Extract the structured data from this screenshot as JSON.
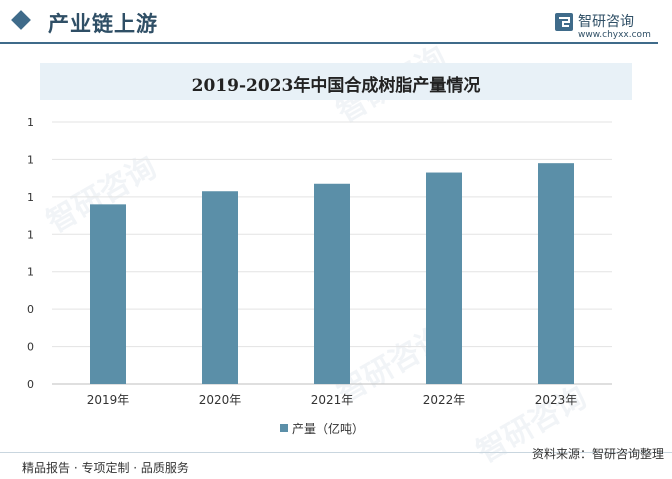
{
  "header": {
    "section_title": "产业链上游",
    "brand_name": "智研咨询",
    "brand_url": "www.chyxx.com"
  },
  "watermark_text": "智研咨询",
  "chart_data": {
    "type": "bar",
    "title": "2019-2023年中国合成树脂产量情况",
    "categories": [
      "2019年",
      "2020年",
      "2021年",
      "2022年",
      "2023年"
    ],
    "series": [
      {
        "name": "产量（亿吨）",
        "values": [
          0.96,
          1.03,
          1.07,
          1.13,
          1.18
        ],
        "color": "#5b8fa8"
      }
    ],
    "ylim": [
      0,
      1.4
    ],
    "yticks": [
      0,
      0.2,
      0.4,
      0.6,
      0.8,
      1.0,
      1.2,
      1.4
    ],
    "ytick_labels": [
      "0",
      "0",
      "0",
      "1",
      "1",
      "1",
      "1",
      "1"
    ],
    "grid": true,
    "legend": "bottom"
  },
  "footer": {
    "left": "精品报告 · 专项定制 · 品质服务",
    "right": "资料来源：智研咨询整理"
  }
}
